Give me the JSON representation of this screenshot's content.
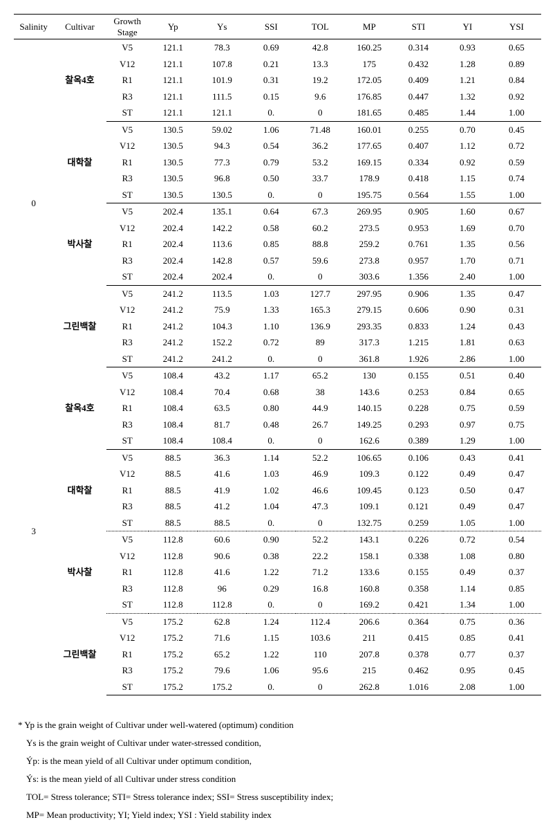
{
  "headers": [
    "Salinity",
    "Cultivar",
    "Growth Stage",
    "Yp",
    "Ys",
    "SSI",
    "TOL",
    "MP",
    "STI",
    "YI",
    "YSI"
  ],
  "groups": [
    {
      "salinity": "0",
      "subgroups": [
        {
          "cultivar": "찰옥4호",
          "sep": "partial",
          "rows": [
            {
              "gs": "V5",
              "vals": [
                "121.1",
                "78.3",
                "0.69",
                "42.8",
                "160.25",
                "0.314",
                "0.93",
                "0.65"
              ]
            },
            {
              "gs": "V12",
              "vals": [
                "121.1",
                "107.8",
                "0.21",
                "13.3",
                "175",
                "0.432",
                "1.28",
                "0.89"
              ]
            },
            {
              "gs": "R1",
              "vals": [
                "121.1",
                "101.9",
                "0.31",
                "19.2",
                "172.05",
                "0.409",
                "1.21",
                "0.84"
              ]
            },
            {
              "gs": "R3",
              "vals": [
                "121.1",
                "111.5",
                "0.15",
                "9.6",
                "176.85",
                "0.447",
                "1.32",
                "0.92"
              ]
            },
            {
              "gs": "ST",
              "vals": [
                "121.1",
                "121.1",
                "0.",
                "0",
                "181.65",
                "0.485",
                "1.44",
                "1.00"
              ]
            }
          ]
        },
        {
          "cultivar": "대학찰",
          "sep": "partial",
          "rows": [
            {
              "gs": "V5",
              "vals": [
                "130.5",
                "59.02",
                "1.06",
                "71.48",
                "160.01",
                "0.255",
                "0.70",
                "0.45"
              ]
            },
            {
              "gs": "V12",
              "vals": [
                "130.5",
                "94.3",
                "0.54",
                "36.2",
                "177.65",
                "0.407",
                "1.12",
                "0.72"
              ]
            },
            {
              "gs": "R1",
              "vals": [
                "130.5",
                "77.3",
                "0.79",
                "53.2",
                "169.15",
                "0.334",
                "0.92",
                "0.59"
              ]
            },
            {
              "gs": "R3",
              "vals": [
                "130.5",
                "96.8",
                "0.50",
                "33.7",
                "178.9",
                "0.418",
                "1.15",
                "0.74"
              ]
            },
            {
              "gs": "ST",
              "vals": [
                "130.5",
                "130.5",
                "0.",
                "0",
                "195.75",
                "0.564",
                "1.55",
                "1.00"
              ]
            }
          ]
        },
        {
          "cultivar": "박사찰",
          "sep": "partial",
          "rows": [
            {
              "gs": "V5",
              "vals": [
                "202.4",
                "135.1",
                "0.64",
                "67.3",
                "269.95",
                "0.905",
                "1.60",
                "0.67"
              ]
            },
            {
              "gs": "V12",
              "vals": [
                "202.4",
                "142.2",
                "0.58",
                "60.2",
                "273.5",
                "0.953",
                "1.69",
                "0.70"
              ]
            },
            {
              "gs": "R1",
              "vals": [
                "202.4",
                "113.6",
                "0.85",
                "88.8",
                "259.2",
                "0.761",
                "1.35",
                "0.56"
              ]
            },
            {
              "gs": "R3",
              "vals": [
                "202.4",
                "142.8",
                "0.57",
                "59.6",
                "273.8",
                "0.957",
                "1.70",
                "0.71"
              ]
            },
            {
              "gs": "ST",
              "vals": [
                "202.4",
                "202.4",
                "0.",
                "0",
                "303.6",
                "1.356",
                "2.40",
                "1.00"
              ]
            }
          ]
        },
        {
          "cultivar": "그린백찰",
          "sep": "solid",
          "rows": [
            {
              "gs": "V5",
              "vals": [
                "241.2",
                "113.5",
                "1.03",
                "127.7",
                "297.95",
                "0.906",
                "1.35",
                "0.47"
              ]
            },
            {
              "gs": "V12",
              "vals": [
                "241.2",
                "75.9",
                "1.33",
                "165.3",
                "279.15",
                "0.606",
                "0.90",
                "0.31"
              ]
            },
            {
              "gs": "R1",
              "vals": [
                "241.2",
                "104.3",
                "1.10",
                "136.9",
                "293.35",
                "0.833",
                "1.24",
                "0.43"
              ]
            },
            {
              "gs": "R3",
              "vals": [
                "241.2",
                "152.2",
                "0.72",
                "89",
                "317.3",
                "1.215",
                "1.81",
                "0.63"
              ]
            },
            {
              "gs": "ST",
              "vals": [
                "241.2",
                "241.2",
                "0.",
                "0",
                "361.8",
                "1.926",
                "2.86",
                "1.00"
              ]
            }
          ]
        }
      ]
    },
    {
      "salinity": "3",
      "subgroups": [
        {
          "cultivar": "찰옥4호",
          "sep": "partial",
          "rows": [
            {
              "gs": "V5",
              "vals": [
                "108.4",
                "43.2",
                "1.17",
                "65.2",
                "130",
                "0.155",
                "0.51",
                "0.40"
              ]
            },
            {
              "gs": "V12",
              "vals": [
                "108.4",
                "70.4",
                "0.68",
                "38",
                "143.6",
                "0.253",
                "0.84",
                "0.65"
              ]
            },
            {
              "gs": "R1",
              "vals": [
                "108.4",
                "63.5",
                "0.80",
                "44.9",
                "140.15",
                "0.228",
                "0.75",
                "0.59"
              ]
            },
            {
              "gs": "R3",
              "vals": [
                "108.4",
                "81.7",
                "0.48",
                "26.7",
                "149.25",
                "0.293",
                "0.97",
                "0.75"
              ]
            },
            {
              "gs": "ST",
              "vals": [
                "108.4",
                "108.4",
                "0.",
                "0",
                "162.6",
                "0.389",
                "1.29",
                "1.00"
              ]
            }
          ]
        },
        {
          "cultivar": "대학찰",
          "sep": "partial-dotted",
          "rows": [
            {
              "gs": "V5",
              "vals": [
                "88.5",
                "36.3",
                "1.14",
                "52.2",
                "106.65",
                "0.106",
                "0.43",
                "0.41"
              ]
            },
            {
              "gs": "V12",
              "vals": [
                "88.5",
                "41.6",
                "1.03",
                "46.9",
                "109.3",
                "0.122",
                "0.49",
                "0.47"
              ]
            },
            {
              "gs": "R1",
              "vals": [
                "88.5",
                "41.9",
                "1.02",
                "46.6",
                "109.45",
                "0.123",
                "0.50",
                "0.47"
              ]
            },
            {
              "gs": "R3",
              "vals": [
                "88.5",
                "41.2",
                "1.04",
                "47.3",
                "109.1",
                "0.121",
                "0.49",
                "0.47"
              ]
            },
            {
              "gs": "ST",
              "vals": [
                "88.5",
                "88.5",
                "0.",
                "0",
                "132.75",
                "0.259",
                "1.05",
                "1.00"
              ]
            }
          ]
        },
        {
          "cultivar": "박사찰",
          "sep": "partial-dotted",
          "rows": [
            {
              "gs": "V5",
              "vals": [
                "112.8",
                "60.6",
                "0.90",
                "52.2",
                "143.1",
                "0.226",
                "0.72",
                "0.54"
              ]
            },
            {
              "gs": "V12",
              "vals": [
                "112.8",
                "90.6",
                "0.38",
                "22.2",
                "158.1",
                "0.338",
                "1.08",
                "0.80"
              ]
            },
            {
              "gs": "R1",
              "vals": [
                "112.8",
                "41.6",
                "1.22",
                "71.2",
                "133.6",
                "0.155",
                "0.49",
                "0.37"
              ]
            },
            {
              "gs": "R3",
              "vals": [
                "112.8",
                "96",
                "0.29",
                "16.8",
                "160.8",
                "0.358",
                "1.14",
                "0.85"
              ]
            },
            {
              "gs": "ST",
              "vals": [
                "112.8",
                "112.8",
                "0.",
                "0",
                "169.2",
                "0.421",
                "1.34",
                "1.00"
              ]
            }
          ]
        },
        {
          "cultivar": "그린백찰",
          "sep": "last",
          "rows": [
            {
              "gs": "V5",
              "vals": [
                "175.2",
                "62.8",
                "1.24",
                "112.4",
                "206.6",
                "0.364",
                "0.75",
                "0.36"
              ]
            },
            {
              "gs": "V12",
              "vals": [
                "175.2",
                "71.6",
                "1.15",
                "103.6",
                "211",
                "0.415",
                "0.85",
                "0.41"
              ]
            },
            {
              "gs": "R1",
              "vals": [
                "175.2",
                "65.2",
                "1.22",
                "110",
                "207.8",
                "0.378",
                "0.77",
                "0.37"
              ]
            },
            {
              "gs": "R3",
              "vals": [
                "175.2",
                "79.6",
                "1.06",
                "95.6",
                "215",
                "0.462",
                "0.95",
                "0.45"
              ]
            },
            {
              "gs": "ST",
              "vals": [
                "175.2",
                "175.2",
                "0.",
                "0",
                "262.8",
                "1.016",
                "2.08",
                "1.00"
              ]
            }
          ]
        }
      ]
    }
  ],
  "footnotes": [
    {
      "text": "* Yp is the grain weight of Cultivar under well-watered (optimum) condition",
      "indent": false
    },
    {
      "text": "Ys is the grain weight of Cultivar under water-stressed condition,",
      "indent": true
    },
    {
      "text": "Ýp: is the mean yield of all Cultivar under optimum condition,",
      "indent": true
    },
    {
      "text": "Ýs: is the mean yield of all Cultivar under stress condition",
      "indent": true
    },
    {
      "text": "TOL= Stress tolerance; STI= Stress tolerance index; SSI= Stress susceptibility index;",
      "indent": true
    },
    {
      "text": "MP= Mean productivity; YI; Yield index; YSI : Yield stability index",
      "indent": true
    }
  ]
}
